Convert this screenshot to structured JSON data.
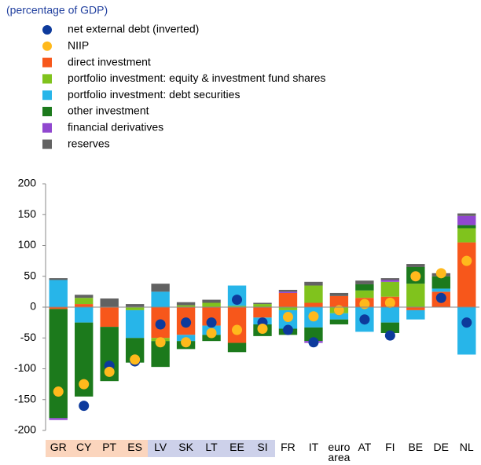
{
  "chart_data": {
    "type": "stacked-bar-dots",
    "subtitle": "(percentage of GDP)",
    "categories": [
      "GR",
      "CY",
      "PT",
      "ES",
      "LV",
      "SK",
      "LT",
      "EE",
      "SI",
      "FR",
      "IT",
      "euro area",
      "AT",
      "FI",
      "BE",
      "DE",
      "NL"
    ],
    "category_backgrounds": [
      "#fbd5bd",
      "#fbd5bd",
      "#fbd5bd",
      "#fbd5bd",
      "#cdd1ea",
      "#cdd1ea",
      "#cdd1ea",
      "#cdd1ea",
      "#cdd1ea",
      null,
      null,
      null,
      null,
      null,
      null,
      null,
      null
    ],
    "dots": [
      {
        "name": "net external debt (inverted)",
        "color": "#0d3a9c",
        "values": [
          null,
          -160,
          -95,
          -88,
          -28,
          -25,
          -25,
          12,
          -25,
          -37,
          -57,
          -5,
          -20,
          -46,
          50,
          15,
          -25
        ]
      },
      {
        "name": "NIIP",
        "color": "#ffb91c",
        "values": [
          -137,
          -125,
          -105,
          -85,
          -57,
          -57,
          -42,
          -37,
          -35,
          -16,
          -15,
          -5,
          5,
          7,
          50,
          55,
          75
        ]
      }
    ],
    "series": [
      {
        "name": "direct investment",
        "color": "#f7571b",
        "values": [
          -3,
          5,
          -32,
          0,
          -50,
          -45,
          -30,
          -58,
          -17,
          23,
          7,
          18,
          15,
          17,
          -5,
          25,
          105
        ]
      },
      {
        "name": "portfolio investment: equity & investment fund shares",
        "color": "#80c31d",
        "values": [
          0,
          10,
          0,
          -5,
          -5,
          3,
          7,
          2,
          5,
          -5,
          28,
          -10,
          12,
          24,
          38,
          0,
          23
        ]
      },
      {
        "name": "portfolio investment: debt securities",
        "color": "#27b5e9",
        "values": [
          44,
          -25,
          0,
          -45,
          25,
          -10,
          -15,
          33,
          -11,
          -30,
          -33,
          -10,
          -40,
          -25,
          -15,
          5,
          -77
        ]
      },
      {
        "name": "other investment",
        "color": "#1c7a1c",
        "values": [
          -177,
          -120,
          -88,
          -40,
          -42,
          -13,
          -10,
          -15,
          -19,
          -10,
          -22,
          -8,
          10,
          -17,
          27,
          20,
          5
        ]
      },
      {
        "name": "financial derivatives",
        "color": "#9047cf",
        "values": [
          -3,
          0,
          0,
          0,
          0,
          0,
          0,
          0,
          0,
          2,
          -3,
          0,
          0,
          3,
          0,
          0,
          15
        ]
      },
      {
        "name": "reserves",
        "color": "#626262",
        "values": [
          3,
          5,
          14,
          5,
          13,
          5,
          5,
          0,
          2,
          3,
          6,
          5,
          6,
          3,
          5,
          5,
          4
        ]
      }
    ],
    "ylim": [
      -200,
      200
    ],
    "yticks": [
      -200,
      -150,
      -100,
      -50,
      0,
      50,
      100,
      150,
      200
    ],
    "grid": false
  }
}
